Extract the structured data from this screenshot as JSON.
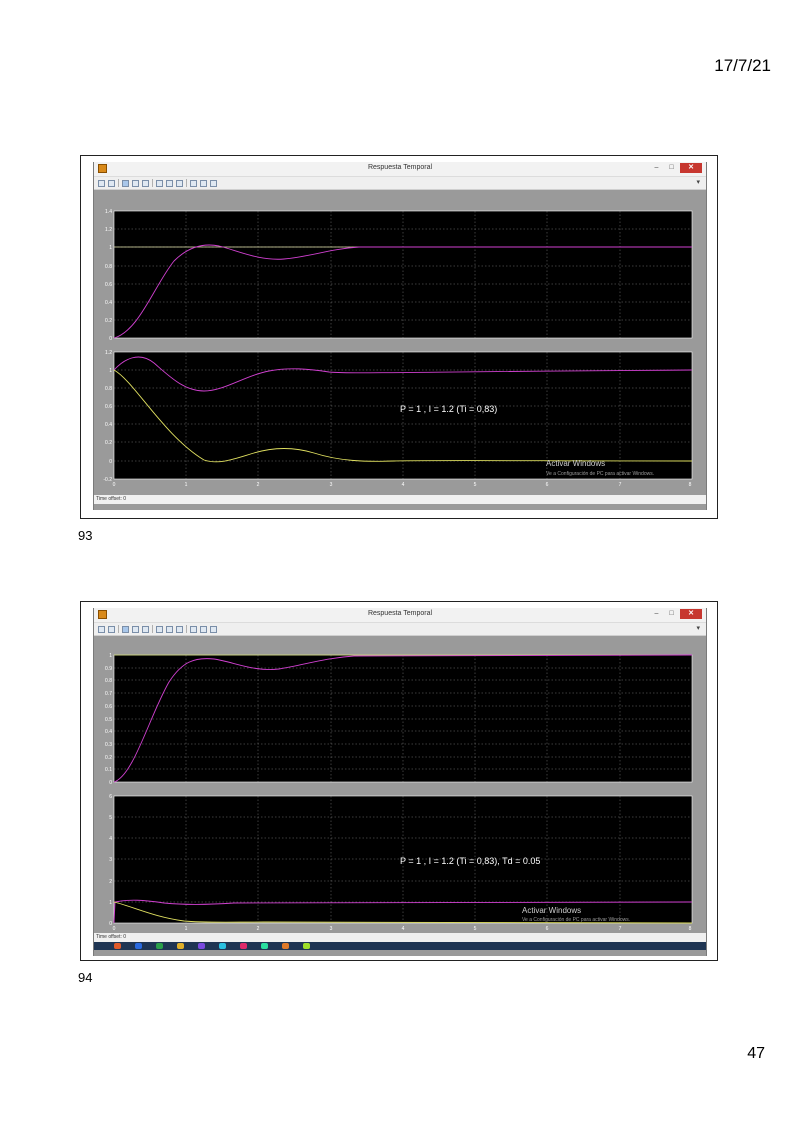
{
  "header": {
    "date": "17/7/21"
  },
  "footer": {
    "page_number": "47"
  },
  "slides": [
    {
      "number": "93",
      "window_title": "Respuesta Temporal",
      "status_label": "Time offset:  0",
      "annotation": "P = 1 , I = 1.2  (Ti = 0,83)",
      "watermark_title": "Activar Windows",
      "watermark_sub": "Ve a Configuración de PC para activar Windows.",
      "x_ticks": [
        "0",
        "1",
        "2",
        "3",
        "4",
        "5",
        "6",
        "7",
        "8"
      ],
      "top_y_ticks": [
        "1.4",
        "1.2",
        "1",
        "0.8",
        "0.6",
        "0.4",
        "0.2",
        "0"
      ],
      "bottom_y_ticks": [
        "1.2",
        "1",
        "0.8",
        "0.6",
        "0.4",
        "0.2",
        "0",
        "-0.2"
      ],
      "series_colors": {
        "reference": "#e8e8b0",
        "output": "#d040d0",
        "error": "#e0e060"
      }
    },
    {
      "number": "94",
      "window_title": "Respuesta Temporal",
      "status_label": "Time offset:  0",
      "annotation": "P = 1 , I = 1.2  (Ti = 0,83), Td = 0.05",
      "watermark_title": "Activar Windows",
      "watermark_sub": "Ve a Configuración de PC para activar Windows.",
      "x_ticks": [
        "0",
        "1",
        "2",
        "3",
        "4",
        "5",
        "6",
        "7",
        "8"
      ],
      "top_y_ticks": [
        "1",
        "0.9",
        "0.8",
        "0.7",
        "0.6",
        "0.5",
        "0.4",
        "0.3",
        "0.2",
        "0.1",
        "0"
      ],
      "bottom_y_ticks": [
        "6",
        "5",
        "4",
        "3",
        "2",
        "1",
        "0"
      ],
      "series_colors": {
        "reference": "#e8e8b0",
        "output": "#d040d0",
        "error": "#e0e060"
      }
    }
  ]
}
